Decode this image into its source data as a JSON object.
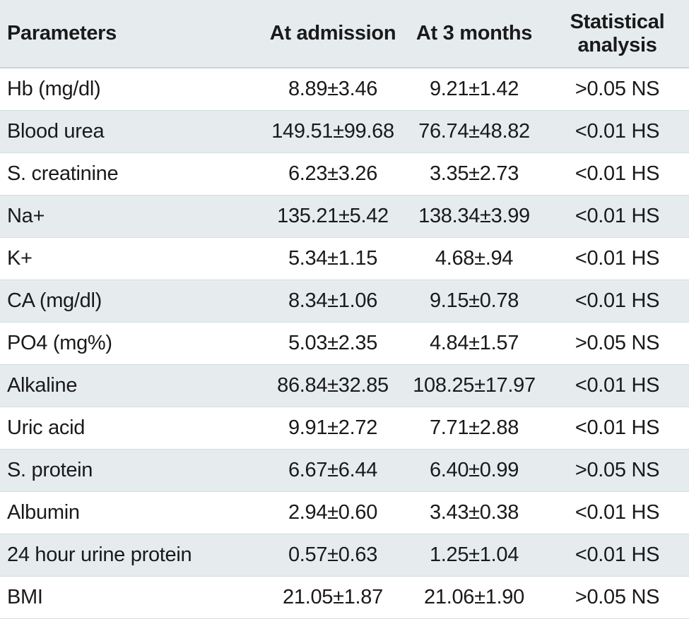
{
  "table": {
    "headers": {
      "parameters": "Parameters",
      "at_admission": "At admission",
      "at_3_months": "At 3 months",
      "statistical_analysis": "Statistical analysis"
    },
    "rows": [
      {
        "parameter": "Hb (mg/dl)",
        "at_admission": "8.89±3.46",
        "at_3_months": "9.21±1.42",
        "analysis": ">0.05 NS"
      },
      {
        "parameter": "Blood urea",
        "at_admission": "149.51±99.68",
        "at_3_months": "76.74±48.82",
        "analysis": "<0.01 HS"
      },
      {
        "parameter": "S. creatinine",
        "at_admission": "6.23±3.26",
        "at_3_months": "3.35±2.73",
        "analysis": "<0.01 HS"
      },
      {
        "parameter": "Na+",
        "at_admission": "135.21±5.42",
        "at_3_months": "138.34±3.99",
        "analysis": "<0.01 HS"
      },
      {
        "parameter": "K+",
        "at_admission": "5.34±1.15",
        "at_3_months": "4.68±.94",
        "analysis": "<0.01 HS"
      },
      {
        "parameter": "CA (mg/dl)",
        "at_admission": "8.34±1.06",
        "at_3_months": "9.15±0.78",
        "analysis": "<0.01 HS"
      },
      {
        "parameter": "PO4 (mg%)",
        "at_admission": "5.03±2.35",
        "at_3_months": "4.84±1.57",
        "analysis": ">0.05 NS"
      },
      {
        "parameter": "Alkaline",
        "at_admission": "86.84±32.85",
        "at_3_months": "108.25±17.97",
        "analysis": "<0.01 HS"
      },
      {
        "parameter": "Uric acid",
        "at_admission": "9.91±2.72",
        "at_3_months": "7.71±2.88",
        "analysis": "<0.01 HS"
      },
      {
        "parameter": "S. protein",
        "at_admission": "6.67±6.44",
        "at_3_months": "6.40±0.99",
        "analysis": ">0.05 NS"
      },
      {
        "parameter": "Albumin",
        "at_admission": "2.94±0.60",
        "at_3_months": "3.43±0.38",
        "analysis": "<0.01 HS"
      },
      {
        "parameter": "24 hour urine protein",
        "at_admission": "0.57±0.63",
        "at_3_months": "1.25±1.04",
        "analysis": "<0.01 HS"
      },
      {
        "parameter": "BMI",
        "at_admission": "21.05±1.87",
        "at_3_months": "21.06±1.90",
        "analysis": ">0.05 NS"
      }
    ]
  }
}
